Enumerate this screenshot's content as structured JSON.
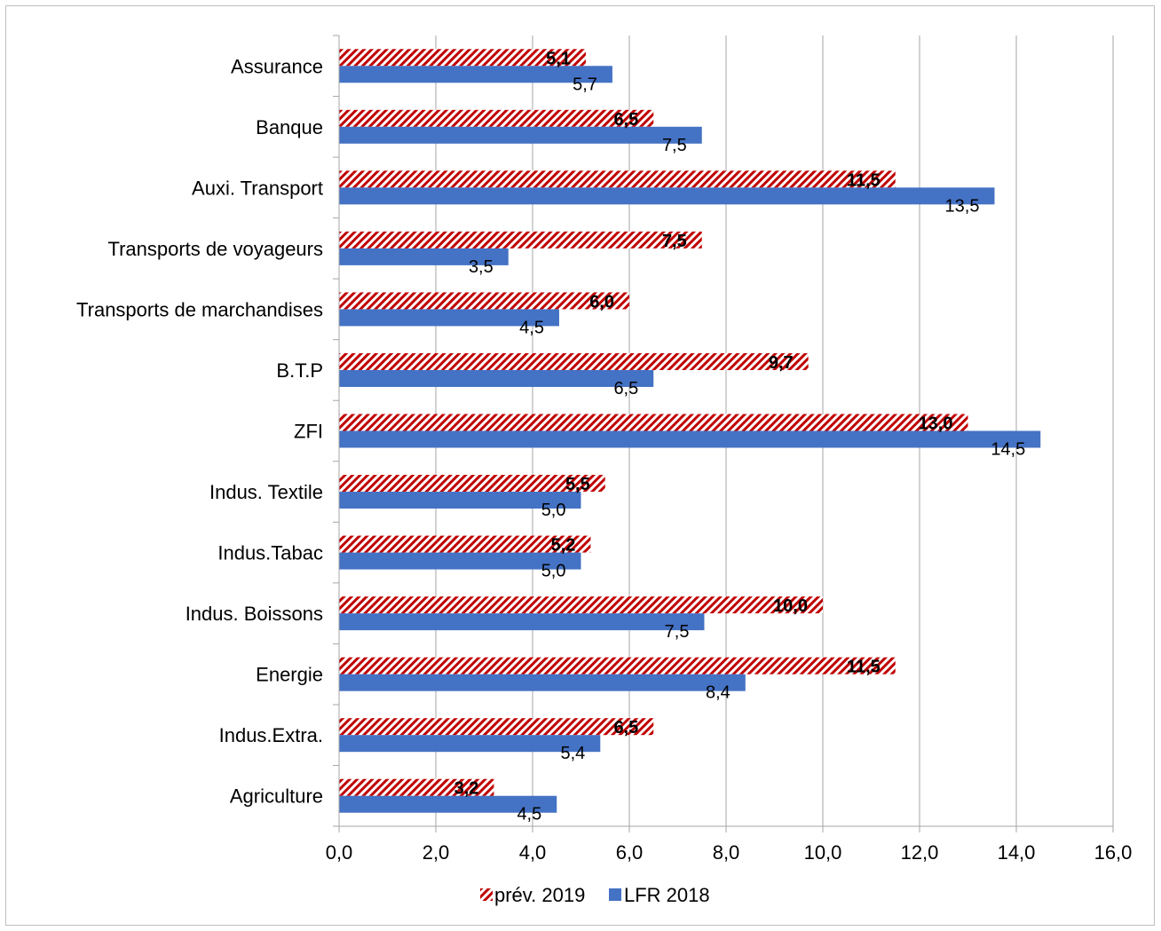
{
  "chart_data": {
    "type": "bar",
    "orientation": "horizontal",
    "categories": [
      "Assurance",
      "Banque",
      "Auxi. Transport",
      "Transports de voyageurs",
      "Transports de marchandises",
      "B.T.P",
      "ZFI",
      "Indus. Textile",
      "Indus.Tabac",
      "Indus. Boissons",
      "Energie",
      "Indus.Extra.",
      "Agriculture"
    ],
    "series": [
      {
        "name": "prév. 2019",
        "color": "#c00000",
        "pattern": "diagonal-hatch",
        "values": [
          5.1,
          6.5,
          11.5,
          7.5,
          6.0,
          9.7,
          13.0,
          5.5,
          5.2,
          10.0,
          11.5,
          6.5,
          3.2
        ],
        "labels": [
          "5,1",
          "6,5",
          "11,5",
          "7,5",
          "6,0",
          "9,7",
          "13,0",
          "5,5",
          "5,2",
          "10,0",
          "11,5",
          "6,5",
          "3,2"
        ]
      },
      {
        "name": "LFR 2018",
        "color": "#4472c4",
        "pattern": "solid",
        "values": [
          5.65,
          7.5,
          13.55,
          3.5,
          4.55,
          6.5,
          14.5,
          5.0,
          5.0,
          7.55,
          8.4,
          5.4,
          4.5
        ],
        "labels": [
          "5,7",
          "7,5",
          "13,5",
          "3,5",
          "4,5",
          "6,5",
          "14,5",
          "5,0",
          "5,0",
          "7,5",
          "8,4",
          "5,4",
          "4,5"
        ]
      }
    ],
    "xlim": [
      0,
      16
    ],
    "xticks": [
      "0,0",
      "2,0",
      "4,0",
      "6,0",
      "8,0",
      "10,0",
      "12,0",
      "14,0",
      "16,0"
    ],
    "grid": "vertical",
    "legend": "bottom",
    "xlabel": "",
    "ylabel": "",
    "title": ""
  }
}
